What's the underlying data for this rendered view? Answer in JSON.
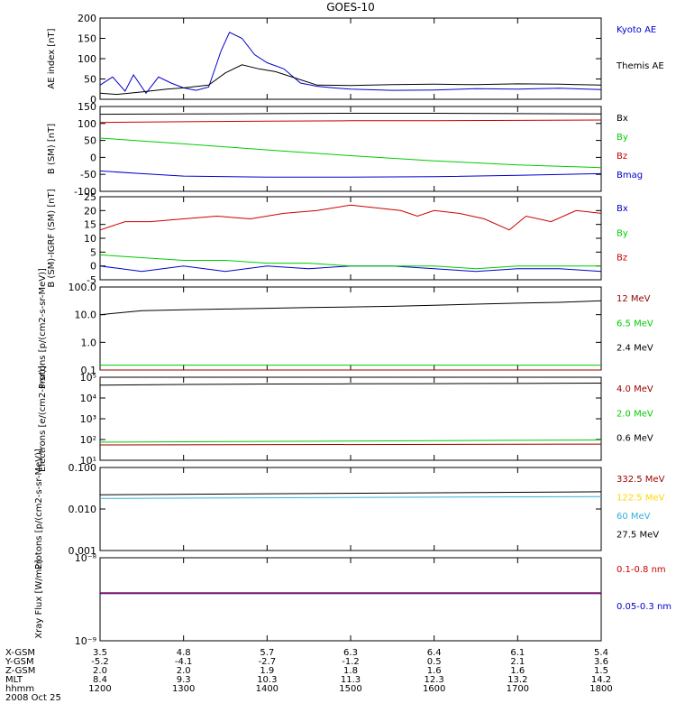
{
  "title": "GOES-10",
  "colors": {
    "black": "#000000",
    "blue": "#0000cc",
    "red": "#cc0000",
    "green": "#00cc00",
    "darkred": "#990000",
    "gold": "#ffd700",
    "cyan": "#33b0e0",
    "purple": "#333399"
  },
  "x_axis": {
    "ticks": [
      "1200",
      "1300",
      "1400",
      "1500",
      "1600",
      "1700",
      "1800"
    ],
    "rows": [
      {
        "label": "X-GSM",
        "values": [
          "3.5",
          "4.8",
          "5.7",
          "6.3",
          "6.4",
          "6.1",
          "5.4"
        ]
      },
      {
        "label": "Y-GSM",
        "values": [
          "-5.2",
          "-4.1",
          "-2.7",
          "-1.2",
          "0.5",
          "2.1",
          "3.6"
        ]
      },
      {
        "label": "Z-GSM",
        "values": [
          "2.0",
          "2.0",
          "1.9",
          "1.8",
          "1.6",
          "1.6",
          "1.5"
        ]
      },
      {
        "label": "MLT",
        "values": [
          "8.4",
          "9.3",
          "10.3",
          "11.3",
          "12.3",
          "13.2",
          "14.2"
        ]
      },
      {
        "label": "hhmm",
        "values": [
          "1200",
          "1300",
          "1400",
          "1500",
          "1600",
          "1700",
          "1800"
        ]
      }
    ],
    "date": "2008 Oct 25"
  },
  "chart_data": [
    {
      "type": "line",
      "ylabel": "AE index [nT]",
      "ylim": [
        0,
        200
      ],
      "yticks": [
        {
          "v": 0,
          "t": "0"
        },
        {
          "v": 50,
          "t": "50"
        },
        {
          "v": 100,
          "t": "100"
        },
        {
          "v": 150,
          "t": "150"
        },
        {
          "v": 200,
          "t": "200"
        }
      ],
      "series": [
        {
          "name": "Kyoto AE",
          "color": "#0000cc",
          "x": [
            12.0,
            12.15,
            12.3,
            12.4,
            12.55,
            12.7,
            12.85,
            13.0,
            13.15,
            13.3,
            13.45,
            13.55,
            13.7,
            13.85,
            14.0,
            14.2,
            14.4,
            14.6,
            14.8,
            15.0,
            15.5,
            16.0,
            16.5,
            17.0,
            17.5,
            18.0
          ],
          "y": [
            35,
            55,
            20,
            60,
            15,
            55,
            40,
            28,
            22,
            30,
            120,
            165,
            150,
            110,
            90,
            75,
            40,
            32,
            28,
            25,
            22,
            23,
            26,
            25,
            27,
            24
          ]
        },
        {
          "name": "Themis AE",
          "color": "#000000",
          "x": [
            12.0,
            12.2,
            12.5,
            12.8,
            13.0,
            13.3,
            13.5,
            13.7,
            13.9,
            14.1,
            14.4,
            14.6,
            15.0,
            15.5,
            16.0,
            16.5,
            17.0,
            17.5,
            18.0
          ],
          "y": [
            15,
            12,
            18,
            25,
            28,
            35,
            65,
            85,
            75,
            68,
            48,
            35,
            34,
            36,
            37,
            36,
            38,
            37,
            35
          ]
        }
      ]
    },
    {
      "type": "line",
      "ylabel": "B (SM) [nT]",
      "ylim": [
        -100,
        150
      ],
      "yticks": [
        {
          "v": -100,
          "t": "-100"
        },
        {
          "v": -50,
          "t": "-50"
        },
        {
          "v": 0,
          "t": "0"
        },
        {
          "v": 50,
          "t": "50"
        },
        {
          "v": 100,
          "t": "100"
        },
        {
          "v": 150,
          "t": "150"
        }
      ],
      "series": [
        {
          "name": "Bx",
          "color": "#000000",
          "x": [
            12,
            13,
            14,
            15,
            16,
            17,
            18
          ],
          "y": [
            127,
            128,
            129,
            130,
            130,
            129,
            128
          ]
        },
        {
          "name": "By",
          "color": "#00cc00",
          "x": [
            12,
            13,
            14,
            15,
            16,
            17,
            18
          ],
          "y": [
            57,
            40,
            22,
            5,
            -10,
            -22,
            -30
          ]
        },
        {
          "name": "Bz",
          "color": "#cc0000",
          "x": [
            12,
            13,
            14,
            15,
            16,
            17,
            18
          ],
          "y": [
            103,
            105,
            107,
            108,
            108,
            109,
            110
          ]
        },
        {
          "name": "Bmag",
          "color": "#0000cc",
          "x": [
            12,
            12.5,
            13,
            14,
            15,
            16,
            17,
            18
          ],
          "y": [
            -40,
            -48,
            -55,
            -58,
            -58,
            -57,
            -53,
            -48
          ]
        }
      ]
    },
    {
      "type": "line",
      "ylabel": "B (SM)-IGRF (SM) [nT]",
      "ylim": [
        -5,
        25
      ],
      "yticks": [
        {
          "v": -5,
          "t": "-5"
        },
        {
          "v": 0,
          "t": "0"
        },
        {
          "v": 5,
          "t": "5"
        },
        {
          "v": 10,
          "t": "10"
        },
        {
          "v": 15,
          "t": "15"
        },
        {
          "v": 20,
          "t": "20"
        },
        {
          "v": 25,
          "t": "25"
        }
      ],
      "series": [
        {
          "name": "Bx",
          "color": "#0000cc",
          "x": [
            12,
            12.5,
            13,
            13.5,
            14,
            14.5,
            15,
            15.5,
            16,
            16.5,
            17,
            17.5,
            18
          ],
          "y": [
            0,
            -2,
            0,
            -2,
            0,
            -1,
            0,
            0,
            -1,
            -2,
            -1,
            -1,
            -2
          ]
        },
        {
          "name": "By",
          "color": "#00cc00",
          "x": [
            12,
            12.5,
            13,
            13.5,
            14,
            14.5,
            15,
            15.5,
            16,
            16.5,
            17,
            17.5,
            18
          ],
          "y": [
            4,
            3,
            2,
            2,
            1,
            1,
            0,
            0,
            0,
            -1,
            0,
            0,
            0
          ]
        },
        {
          "name": "Bz",
          "color": "#cc0000",
          "x": [
            12,
            12.3,
            12.6,
            13,
            13.4,
            13.8,
            14.2,
            14.6,
            15,
            15.3,
            15.6,
            15.8,
            16,
            16.3,
            16.6,
            16.9,
            17.1,
            17.4,
            17.7,
            18
          ],
          "y": [
            13,
            16,
            16,
            17,
            18,
            17,
            19,
            20,
            22,
            21,
            20,
            18,
            20,
            19,
            17,
            13,
            18,
            16,
            20,
            19
          ]
        }
      ]
    },
    {
      "type": "line",
      "ylabel": "Protons [p/(cm2-s-sr-MeV)]",
      "yscale": "log",
      "ylim": [
        0.1,
        100
      ],
      "yticks": [
        {
          "v": 0.1,
          "t": "0.1"
        },
        {
          "v": 1,
          "t": "1.0"
        },
        {
          "v": 10,
          "t": "10.0"
        },
        {
          "v": 100,
          "t": "100.0"
        }
      ],
      "series": [
        {
          "name": "12 MeV",
          "color": "#990000",
          "x": [
            12,
            18
          ],
          "y": [
            0.1,
            0.1
          ]
        },
        {
          "name": "6.5 MeV",
          "color": "#00cc00",
          "x": [
            12,
            18
          ],
          "y": [
            0.15,
            0.15
          ]
        },
        {
          "name": "2.4 MeV",
          "color": "#000000",
          "x": [
            12,
            12.5,
            13,
            13.5,
            14,
            14.5,
            15,
            15.5,
            16,
            16.5,
            17,
            17.5,
            18
          ],
          "y": [
            10,
            14,
            15,
            16,
            17,
            18,
            19,
            20,
            22,
            24,
            26,
            28,
            32
          ]
        }
      ]
    },
    {
      "type": "line",
      "ylabel": "Electrons [e/(cm2-s-sr)]",
      "yscale": "log",
      "ylim": [
        10,
        100000
      ],
      "yticks": [
        {
          "v": 10,
          "t": "10¹"
        },
        {
          "v": 100,
          "t": "10²"
        },
        {
          "v": 1000,
          "t": "10³"
        },
        {
          "v": 10000,
          "t": "10⁴"
        },
        {
          "v": 100000,
          "t": "10⁵"
        }
      ],
      "series": [
        {
          "name": "4.0 MeV",
          "color": "#990000",
          "x": [
            12,
            18
          ],
          "y": [
            55,
            60
          ]
        },
        {
          "name": "2.0 MeV",
          "color": "#00cc00",
          "x": [
            12,
            18
          ],
          "y": [
            75,
            95
          ]
        },
        {
          "name": "0.6 MeV",
          "color": "#000000",
          "x": [
            12,
            13,
            14,
            15,
            16,
            17,
            18
          ],
          "y": [
            42000,
            45000,
            47000,
            48000,
            49000,
            50000,
            52000
          ]
        }
      ]
    },
    {
      "type": "line",
      "ylabel": "Protons [p/(cm2-s-sr-MeV)]",
      "yscale": "log",
      "ylim": [
        0.001,
        0.1
      ],
      "yticks": [
        {
          "v": 0.001,
          "t": "0.001"
        },
        {
          "v": 0.01,
          "t": "0.010"
        },
        {
          "v": 0.1,
          "t": "0.100"
        }
      ],
      "series": [
        {
          "name": "332.5 MeV",
          "color": "#990000",
          "x": [],
          "y": []
        },
        {
          "name": "122.5 MeV",
          "color": "#ffd700",
          "x": [],
          "y": []
        },
        {
          "name": "60 MeV",
          "color": "#33b0e0",
          "x": [
            12,
            18
          ],
          "y": [
            0.018,
            0.02
          ]
        },
        {
          "name": "27.5 MeV",
          "color": "#000000",
          "x": [
            12,
            18
          ],
          "y": [
            0.022,
            0.026
          ]
        }
      ]
    },
    {
      "type": "line",
      "ylabel": "Xray Flux [W/m2]",
      "yscale": "log",
      "ylim": [
        1e-09,
        1e-08
      ],
      "yticks": [
        {
          "v": 1e-09,
          "t": "10⁻⁹"
        },
        {
          "v": 1e-08,
          "t": "10⁻⁸"
        }
      ],
      "series": [
        {
          "name": "0.1-0.8 nm",
          "color": "#cc0000",
          "x": [
            12,
            18
          ],
          "y": [
            3.8e-09,
            3.8e-09
          ]
        },
        {
          "name": "0.05-0.3 nm",
          "color": "#0000cc",
          "x": [
            12,
            18
          ],
          "y": [
            3.7e-09,
            3.7e-09
          ]
        }
      ]
    }
  ]
}
